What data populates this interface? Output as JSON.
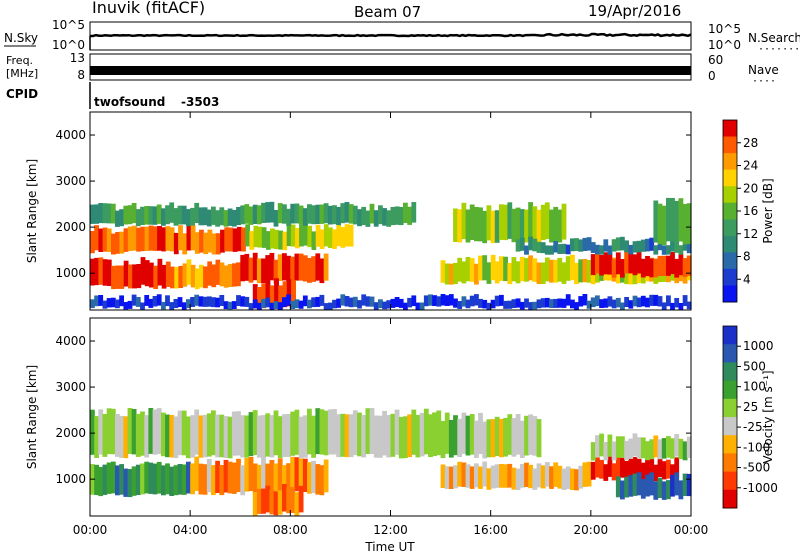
{
  "header": {
    "station": "Inuvik (fitACF)",
    "beam": "Beam 07",
    "date": "19/Apr/2016"
  },
  "panels": {
    "noise": {
      "left_label": "N.Sky",
      "left_ticks": [
        "10^5",
        "10^0"
      ],
      "right_ticks": [
        "10^5",
        "10^0"
      ],
      "right_label": "N.Search",
      "right_label_dots": "·······"
    },
    "freq": {
      "left_label_1": "Freq.",
      "left_label_2": "[MHz]",
      "left_ticks": [
        "13",
        "8"
      ],
      "right_ticks": [
        "60",
        "0"
      ],
      "right_label": "Nave",
      "right_label_dots": "····"
    },
    "cpid": {
      "label": "CPID",
      "program": "twofsound",
      "id": "-3503"
    }
  },
  "chart_data": [
    {
      "type": "heatmap",
      "name": "power",
      "ylabel": "Slant Range [km]",
      "ylim": [
        200,
        4500
      ],
      "yticks": [
        "1000",
        "2000",
        "3000",
        "4000"
      ],
      "colorbar_label": "Power [dB]",
      "colorbar_ticks": [
        "28",
        "24",
        "20",
        "16",
        "12",
        "8",
        "4"
      ],
      "colors": [
        "#e00000",
        "#ff5a00",
        "#ff9a00",
        "#ffd200",
        "#a8d000",
        "#58b030",
        "#3c9c60",
        "#2f8a74",
        "#2a6aa8",
        "#1c3cd0",
        "#0a14f0"
      ],
      "bands": [
        {
          "x0": 0.0,
          "x1": 3.2,
          "y0": 700,
          "y1": 1250,
          "level": 0.95
        },
        {
          "x0": 3.2,
          "x1": 6.0,
          "y0": 700,
          "y1": 1200,
          "level": 0.8
        },
        {
          "x0": 6.0,
          "x1": 9.5,
          "y0": 800,
          "y1": 1350,
          "level": 0.9
        },
        {
          "x0": 6.5,
          "x1": 8.2,
          "y0": 250,
          "y1": 800,
          "level": 0.95
        },
        {
          "x0": 0.0,
          "x1": 6.2,
          "y0": 1450,
          "y1": 1950,
          "level": 0.85
        },
        {
          "x0": 6.2,
          "x1": 10.5,
          "y0": 1550,
          "y1": 2000,
          "level": 0.6
        },
        {
          "x0": 0.0,
          "x1": 13.0,
          "y0": 2050,
          "y1": 2450,
          "level": 0.4
        },
        {
          "x0": 14.0,
          "x1": 24.0,
          "y0": 800,
          "y1": 1300,
          "level": 0.65
        },
        {
          "x0": 20.0,
          "x1": 24.0,
          "y0": 950,
          "y1": 1400,
          "level": 0.95
        },
        {
          "x0": 14.5,
          "x1": 19.0,
          "y0": 1700,
          "y1": 2450,
          "level": 0.55
        },
        {
          "x0": 17.0,
          "x1": 24.0,
          "y0": 1450,
          "y1": 1700,
          "level": 0.3
        },
        {
          "x0": 22.5,
          "x1": 24.0,
          "y0": 1650,
          "y1": 2550,
          "level": 0.5
        },
        {
          "x0": 0.0,
          "x1": 24.0,
          "y0": 250,
          "y1": 450,
          "level": 0.1
        }
      ]
    },
    {
      "type": "heatmap",
      "name": "velocity",
      "ylabel": "Slant Range [km]",
      "xlabel": "Time UT",
      "xticks": [
        "00:00",
        "04:00",
        "08:00",
        "12:00",
        "16:00",
        "20:00",
        "00:00"
      ],
      "ylim": [
        200,
        4500
      ],
      "yticks": [
        "1000",
        "2000",
        "3000",
        "4000"
      ],
      "colorbar_label": "Velocity [m s⁻¹]",
      "colorbar_ticks": [
        "1000",
        "500",
        "100",
        "25",
        "-25",
        "-100",
        "-500",
        "-1000"
      ],
      "colors": [
        "#1a30c8",
        "#2a58b0",
        "#2f8a5c",
        "#3aa030",
        "#8ad030",
        "#c8c8c8",
        "#ffb000",
        "#ff7a00",
        "#ff3a00",
        "#e00000"
      ],
      "bands": [
        {
          "x0": 0.0,
          "x1": 4.0,
          "y0": 650,
          "y1": 1300,
          "level": 0.7
        },
        {
          "x0": 4.0,
          "x1": 9.5,
          "y0": 700,
          "y1": 1400,
          "level": 0.3
        },
        {
          "x0": 6.5,
          "x1": 8.5,
          "y0": 250,
          "y1": 800,
          "level": 0.25
        },
        {
          "x0": 0.0,
          "x1": 14.0,
          "y0": 1500,
          "y1": 2450,
          "level": 0.5
        },
        {
          "x0": 14.0,
          "x1": 18.0,
          "y0": 1500,
          "y1": 2350,
          "level": 0.5
        },
        {
          "x0": 14.0,
          "x1": 20.0,
          "y0": 800,
          "y1": 1300,
          "level": 0.35
        },
        {
          "x0": 20.0,
          "x1": 23.5,
          "y0": 1000,
          "y1": 1400,
          "level": 0.02
        },
        {
          "x0": 21.0,
          "x1": 24.0,
          "y0": 600,
          "y1": 1050,
          "level": 0.8
        },
        {
          "x0": 20.0,
          "x1": 24.0,
          "y0": 1450,
          "y1": 1900,
          "level": 0.5
        }
      ]
    }
  ]
}
